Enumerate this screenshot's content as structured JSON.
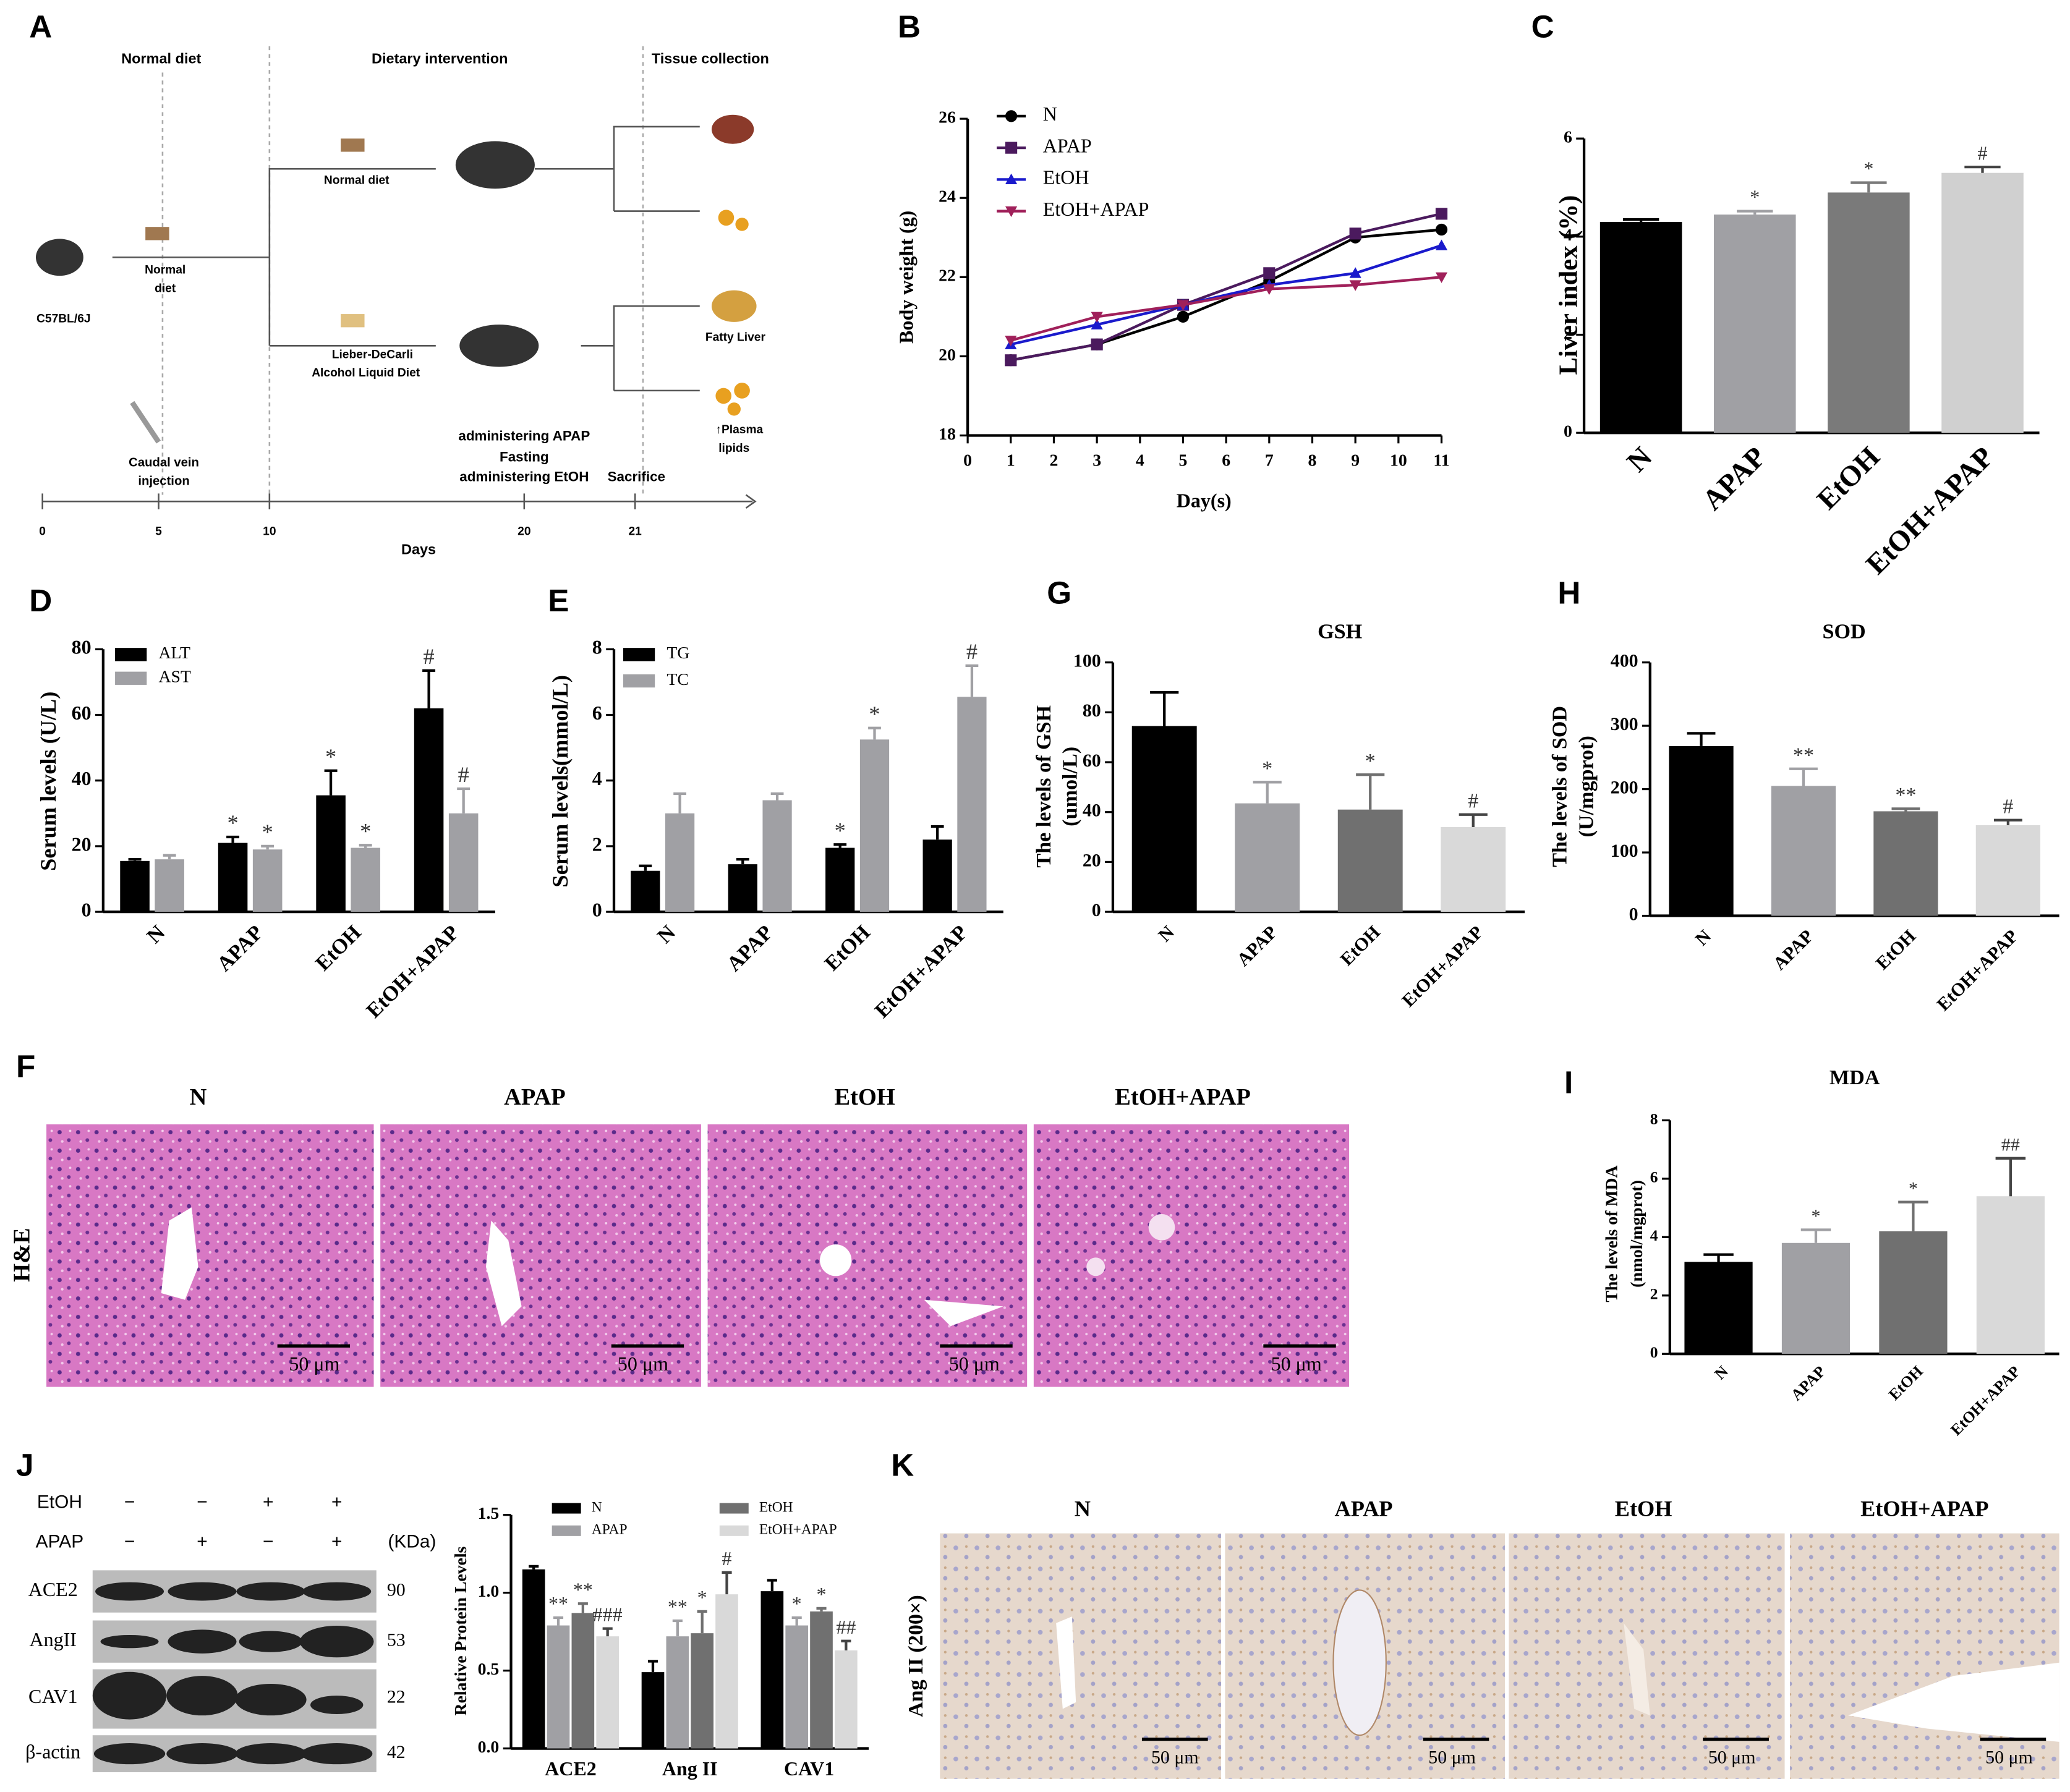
{
  "panel_letters": [
    "A",
    "B",
    "C",
    "D",
    "E",
    "F",
    "G",
    "H",
    "I",
    "J",
    "K"
  ],
  "panel_a": {
    "phases": [
      "Normal diet",
      "Dietary intervention",
      "Tissue collection"
    ],
    "strain": "C57BL/6J",
    "normal_diet": [
      "Normal",
      "diet"
    ],
    "diet_top": "Normal diet",
    "diet_bottom": [
      "Lieber-DeCarli",
      "Alcohol Liquid Diet"
    ],
    "injection": [
      "Caudal vein",
      "injection"
    ],
    "events": [
      "administering APAP",
      "Fasting",
      "administering EtOH"
    ],
    "sacrifice": "Sacrifice",
    "fatty_liver": "Fatty Liver",
    "plasma": [
      "↑Plasma",
      "lipids"
    ],
    "timeline": [
      "0",
      "5",
      "10",
      "20",
      "21"
    ],
    "axis_label": "Days"
  },
  "chart_data": [
    {
      "type": "line",
      "xlabel": "Day(s)",
      "ylabel": "Body weight (g)",
      "x": [
        1,
        3,
        5,
        7,
        9,
        11
      ],
      "xlim": [
        0,
        11
      ],
      "xticks": [
        0,
        1,
        2,
        3,
        4,
        5,
        6,
        7,
        8,
        9,
        10,
        11
      ],
      "ylim": [
        18,
        26
      ],
      "yticks": [
        18,
        20,
        22,
        24,
        26
      ],
      "series": [
        {
          "name": "N",
          "color": "#000000",
          "marker": "circle",
          "values": [
            19.9,
            20.3,
            21.0,
            21.9,
            23.0,
            23.2
          ]
        },
        {
          "name": "APAP",
          "color": "#4b1a5e",
          "marker": "square",
          "values": [
            19.9,
            20.3,
            21.3,
            22.1,
            23.1,
            23.6
          ]
        },
        {
          "name": "EtOH",
          "color": "#1a1acc",
          "marker": "triangle-up",
          "values": [
            20.3,
            20.8,
            21.3,
            21.8,
            22.1,
            22.8
          ]
        },
        {
          "name": "EtOH+APAP",
          "color": "#a0205a",
          "marker": "triangle-down",
          "values": [
            20.4,
            21.0,
            21.3,
            21.7,
            21.8,
            22.0
          ]
        }
      ]
    },
    {
      "type": "bar",
      "ylabel": "Liver index (%)",
      "categories": [
        "N",
        "APAP",
        "EtOH",
        "EtOH+APAP"
      ],
      "values": [
        4.3,
        4.45,
        4.9,
        5.3
      ],
      "errors": [
        0.05,
        0.07,
        0.2,
        0.12
      ],
      "annotations": [
        null,
        "*",
        "*",
        "#"
      ],
      "colors": [
        "#000000",
        "#a0a0a4",
        "#7a7a7a",
        "#d0d0d0"
      ],
      "ylim": [
        0,
        6
      ],
      "yticks": [
        0,
        2,
        4,
        6
      ]
    },
    {
      "type": "bar",
      "ylabel": "Serum levels (U/L)",
      "categories": [
        "N",
        "APAP",
        "EtOH",
        "EtOH+APAP"
      ],
      "ylim": [
        0,
        80
      ],
      "yticks": [
        0,
        20,
        40,
        60,
        80
      ],
      "series": [
        {
          "name": "ALT",
          "color": "#000000",
          "values": [
            15.5,
            21,
            35.5,
            62
          ],
          "errors": [
            0.5,
            1.8,
            7.5,
            11.5
          ],
          "annotations": [
            null,
            "*",
            "*",
            "#"
          ]
        },
        {
          "name": "AST",
          "color": "#a0a0a4",
          "values": [
            16,
            19,
            19.5,
            30
          ],
          "errors": [
            1.2,
            1,
            0.8,
            7.5
          ],
          "annotations": [
            null,
            "*",
            "*",
            "#"
          ]
        }
      ]
    },
    {
      "type": "bar",
      "ylabel": "Serum levels(mmol/L)",
      "categories": [
        "N",
        "APAP",
        "EtOH",
        "EtOH+APAP"
      ],
      "ylim": [
        0,
        8
      ],
      "yticks": [
        0,
        2,
        4,
        6,
        8
      ],
      "series": [
        {
          "name": "TG",
          "color": "#000000",
          "values": [
            1.25,
            1.45,
            1.95,
            2.2
          ],
          "errors": [
            0.15,
            0.15,
            0.1,
            0.4
          ],
          "annotations": [
            null,
            null,
            "*",
            null
          ]
        },
        {
          "name": "TC",
          "color": "#a0a0a4",
          "values": [
            3.0,
            3.4,
            5.25,
            6.55
          ],
          "errors": [
            0.6,
            0.2,
            0.35,
            0.95
          ],
          "annotations": [
            null,
            null,
            "*",
            "#"
          ]
        }
      ]
    },
    {
      "type": "bar",
      "title": "GSH",
      "ylabel": [
        "The levels of GSH",
        "(umol/L)"
      ],
      "categories": [
        "N",
        "APAP",
        "EtOH",
        "EtOH+APAP"
      ],
      "values": [
        74.5,
        43.5,
        41,
        34
      ],
      "errors": [
        13.5,
        8.5,
        14,
        5
      ],
      "annotations": [
        null,
        "*",
        "*",
        "#"
      ],
      "colors": [
        "#000000",
        "#a0a0a4",
        "#707070",
        "#d9d9d9"
      ],
      "ylim": [
        0,
        100
      ],
      "yticks": [
        0,
        20,
        40,
        60,
        80,
        100
      ]
    },
    {
      "type": "bar",
      "title": "SOD",
      "ylabel": [
        "The levels of SOD",
        "(U/mgprot)"
      ],
      "categories": [
        "N",
        "APAP",
        "EtOH",
        "EtOH+APAP"
      ],
      "values": [
        268,
        205,
        165,
        143
      ],
      "errors": [
        20,
        27,
        4,
        8
      ],
      "annotations": [
        null,
        "**",
        "**",
        "#"
      ],
      "colors": [
        "#000000",
        "#a0a0a4",
        "#707070",
        "#d9d9d9"
      ],
      "ylim": [
        0,
        400
      ],
      "yticks": [
        0,
        100,
        200,
        300,
        400
      ]
    },
    {
      "type": "bar",
      "title": "MDA",
      "ylabel": [
        "The levels of MDA",
        "(nmol/mgprot)"
      ],
      "categories": [
        "N",
        "APAP",
        "EtOH",
        "EtOH+APAP"
      ],
      "values": [
        3.15,
        3.8,
        4.2,
        5.4
      ],
      "errors": [
        0.25,
        0.45,
        1,
        1.3
      ],
      "annotations": [
        null,
        "*",
        "*",
        "##"
      ],
      "colors": [
        "#000000",
        "#a0a0a4",
        "#707070",
        "#d9d9d9"
      ],
      "ylim": [
        0,
        8
      ],
      "yticks": [
        0,
        2,
        4,
        6,
        8
      ]
    },
    {
      "type": "bar",
      "ylabel": "Relative Protein Levels",
      "categories": [
        "ACE2",
        "Ang II",
        "CAV1"
      ],
      "ylim": [
        0,
        1.5
      ],
      "yticks": [
        {
          "value": 0,
          "label": "0.0"
        },
        0.5,
        {
          "value": 1,
          "label": "1.0"
        },
        1.5
      ],
      "series": [
        {
          "name": "N",
          "color": "#000000",
          "values": [
            1.15,
            0.49,
            1.01
          ],
          "errors": [
            0.02,
            0.07,
            0.07
          ]
        },
        {
          "name": "APAP",
          "color": "#a0a0a4",
          "values": [
            0.79,
            0.72,
            0.79
          ],
          "errors": [
            0.05,
            0.1,
            0.05
          ],
          "annotations": [
            "**",
            "**",
            "*"
          ]
        },
        {
          "name": "EtOH",
          "color": "#707070",
          "values": [
            0.87,
            0.74,
            0.88
          ],
          "errors": [
            0.06,
            0.14,
            0.02
          ],
          "annotations": [
            "**",
            "*",
            "*"
          ]
        },
        {
          "name": "EtOH+APAP",
          "color": "#d9d9d9",
          "values": [
            0.72,
            0.99,
            0.63
          ],
          "errors": [
            0.05,
            0.14,
            0.06
          ],
          "annotations": [
            "###",
            "#",
            "##"
          ]
        }
      ]
    }
  ],
  "panel_f": {
    "columns": [
      "N",
      "APAP",
      "EtOH",
      "EtOH+APAP"
    ],
    "row_label": "H&E",
    "scale_bar": "50 μm"
  },
  "panel_j_blot": {
    "conditions": [
      {
        "label": "EtOH",
        "signs": [
          "−",
          "−",
          "+",
          "+"
        ]
      },
      {
        "label": "APAP",
        "signs": [
          "−",
          "+",
          "−",
          "+"
        ]
      }
    ],
    "unit": "(KDa)",
    "bands": [
      {
        "name": "ACE2",
        "kda": "90"
      },
      {
        "name": "AngII",
        "kda": "53"
      },
      {
        "name": "CAV1",
        "kda": "22"
      },
      {
        "name": "β-actin",
        "kda": "42"
      }
    ]
  },
  "panel_k": {
    "columns": [
      "N",
      "APAP",
      "EtOH",
      "EtOH+APAP"
    ],
    "row_label": "Ang II (200×)",
    "scale_bar": "50 μm"
  }
}
